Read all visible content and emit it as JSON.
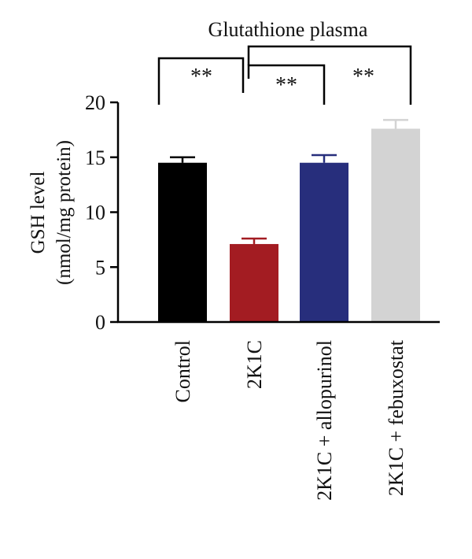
{
  "chart_data": {
    "type": "bar",
    "title": "Glutathione plasma",
    "ylabel_line1": "GSH level",
    "ylabel_line2": "(nmol/mg protein)",
    "xlabel": "",
    "ylim": [
      0,
      20
    ],
    "yticks": [
      "0",
      "5",
      "10",
      "15",
      "20"
    ],
    "categories": [
      "Control",
      "2K1C",
      "2K1C + allopurinol",
      "2K1C + febuxostat"
    ],
    "values": [
      14.5,
      7.1,
      14.5,
      17.6
    ],
    "errors": [
      0.5,
      0.5,
      0.7,
      0.8
    ],
    "colors": [
      "#000000",
      "#a31c22",
      "#272e7c",
      "#d3d3d3"
    ],
    "grid": false,
    "legend": "none",
    "annotations": [
      {
        "label": "**",
        "from": "Control",
        "to": "2K1C"
      },
      {
        "label": "**",
        "from": "2K1C",
        "to": "2K1C + allopurinol"
      },
      {
        "label": "**",
        "from": "2K1C",
        "to": "2K1C + febuxostat"
      }
    ]
  }
}
